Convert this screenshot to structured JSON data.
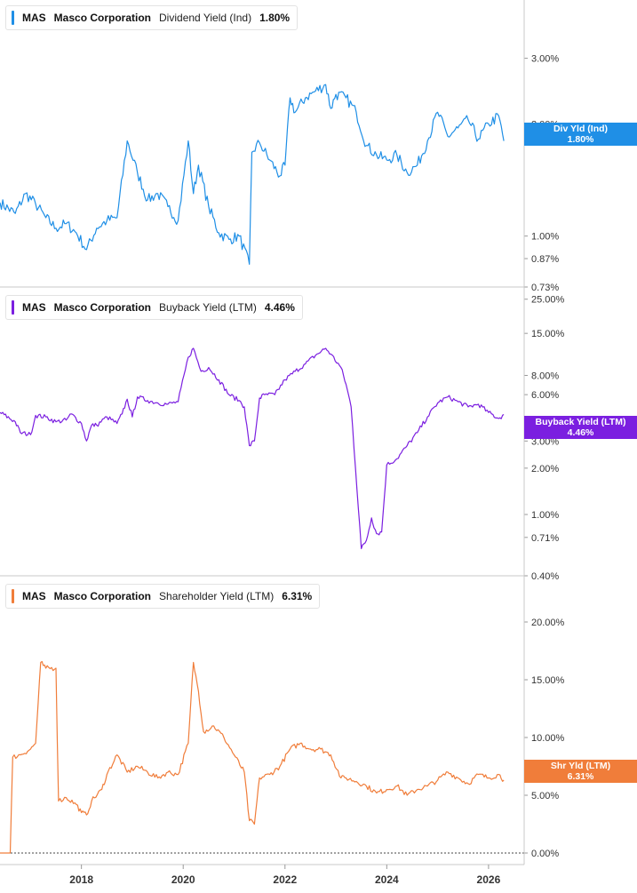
{
  "chart_data": [
    {
      "type": "line",
      "ticker": "MAS",
      "company": "Masco Corporation",
      "metric": "Dividend Yield (Ind)",
      "current_value": "1.80%",
      "badge": {
        "line1": "Div Yld (Ind)",
        "line2": "1.80%"
      },
      "color": "#1f8fe6",
      "scale": "log",
      "ylim": [
        0.73,
        4.3
      ],
      "y_ticks": [
        {
          "label": "3.00%",
          "v": 3.0
        },
        {
          "label": "2.00%",
          "v": 2.0
        },
        {
          "label": "1.00%",
          "v": 1.0
        },
        {
          "label": "0.87%",
          "v": 0.87
        },
        {
          "label": "0.73%",
          "v": 0.73
        }
      ],
      "x": [
        2016.4,
        2016.7,
        2016.9,
        2017.1,
        2017.3,
        2017.5,
        2017.7,
        2017.9,
        2018.1,
        2018.3,
        2018.5,
        2018.7,
        2018.9,
        2019.1,
        2019.3,
        2019.5,
        2019.7,
        2019.9,
        2020.1,
        2020.2,
        2020.3,
        2020.5,
        2020.7,
        2020.9,
        2021.1,
        2021.3,
        2021.35,
        2021.5,
        2021.7,
        2021.9,
        2022.0,
        2022.1,
        2022.2,
        2022.4,
        2022.6,
        2022.8,
        2022.9,
        2023.0,
        2023.2,
        2023.4,
        2023.6,
        2023.8,
        2024.0,
        2024.2,
        2024.4,
        2024.6,
        2024.8,
        2025.0,
        2025.2,
        2025.4,
        2025.6,
        2025.8,
        2026.0,
        2026.2,
        2026.3
      ],
      "values": [
        1.23,
        1.15,
        1.3,
        1.22,
        1.12,
        1.05,
        1.08,
        1.02,
        0.92,
        1.05,
        1.1,
        1.12,
        1.8,
        1.48,
        1.25,
        1.3,
        1.2,
        1.1,
        1.8,
        1.3,
        1.55,
        1.2,
        1.02,
        0.98,
        1.0,
        0.84,
        1.68,
        1.78,
        1.6,
        1.45,
        1.55,
        2.35,
        2.15,
        2.35,
        2.45,
        2.55,
        2.2,
        2.4,
        2.35,
        2.15,
        1.75,
        1.65,
        1.6,
        1.65,
        1.48,
        1.55,
        1.8,
        2.15,
        1.85,
        1.95,
        2.05,
        1.82,
        2.0,
        2.1,
        1.8
      ]
    },
    {
      "type": "line",
      "ticker": "MAS",
      "company": "Masco Corporation",
      "metric": "Buyback Yield (LTM)",
      "current_value": "4.46%",
      "badge": {
        "line1": "Buyback Yield (LTM)",
        "line2": "4.46%"
      },
      "color": "#7b1fe0",
      "scale": "log",
      "ylim": [
        0.4,
        30.0
      ],
      "y_ticks": [
        {
          "label": "25.00%",
          "v": 25
        },
        {
          "label": "15.00%",
          "v": 15
        },
        {
          "label": "8.00%",
          "v": 8
        },
        {
          "label": "6.00%",
          "v": 6
        },
        {
          "label": "3.00%",
          "v": 3
        },
        {
          "label": "2.00%",
          "v": 2
        },
        {
          "label": "1.00%",
          "v": 1
        },
        {
          "label": "0.71%",
          "v": 0.71
        },
        {
          "label": "0.40%",
          "v": 0.4
        }
      ],
      "x": [
        2016.4,
        2016.7,
        2016.8,
        2017.0,
        2017.1,
        2017.3,
        2017.5,
        2017.7,
        2017.8,
        2018.0,
        2018.1,
        2018.2,
        2018.3,
        2018.5,
        2018.7,
        2018.8,
        2018.9,
        2019.0,
        2019.1,
        2019.3,
        2019.5,
        2019.7,
        2019.9,
        2020.1,
        2020.2,
        2020.35,
        2020.5,
        2020.7,
        2020.9,
        2021.1,
        2021.2,
        2021.3,
        2021.4,
        2021.5,
        2021.6,
        2021.8,
        2022.0,
        2022.2,
        2022.4,
        2022.6,
        2022.8,
        2022.9,
        2023.1,
        2023.2,
        2023.3,
        2023.5,
        2023.6,
        2023.7,
        2023.8,
        2023.9,
        2024.0,
        2024.2,
        2024.4,
        2024.6,
        2024.8,
        2025.0,
        2025.2,
        2025.4,
        2025.6,
        2025.8,
        2026.0,
        2026.2,
        2026.3
      ],
      "values": [
        4.6,
        4.0,
        3.4,
        3.3,
        4.4,
        4.3,
        4.0,
        4.1,
        4.5,
        3.9,
        3.0,
        3.8,
        3.8,
        4.3,
        3.9,
        4.5,
        5.6,
        4.3,
        5.8,
        5.5,
        5.3,
        5.2,
        5.4,
        10.5,
        12.0,
        8.5,
        9.0,
        7.5,
        6.0,
        5.5,
        5.0,
        2.8,
        3.0,
        5.7,
        6.0,
        6.0,
        7.5,
        8.5,
        9.5,
        10.8,
        12.0,
        11.0,
        9.0,
        7.0,
        5.0,
        0.6,
        0.68,
        0.95,
        0.75,
        0.77,
        2.1,
        2.3,
        2.8,
        3.4,
        4.3,
        5.3,
        5.8,
        5.4,
        5.0,
        5.2,
        4.6,
        4.2,
        4.46
      ]
    },
    {
      "type": "line",
      "ticker": "MAS",
      "company": "Masco Corporation",
      "metric": "Shareholder Yield (LTM)",
      "current_value": "6.31%",
      "badge": {
        "line1": "Shr Yld (LTM)",
        "line2": "6.31%"
      },
      "color": "#f07d3a",
      "scale": "linear",
      "ylim": [
        -1.0,
        24.0
      ],
      "y_ticks": [
        {
          "label": "20.00%",
          "v": 20
        },
        {
          "label": "15.00%",
          "v": 15
        },
        {
          "label": "10.00%",
          "v": 10
        },
        {
          "label": "5.00%",
          "v": 5
        },
        {
          "label": "0.00%",
          "v": 0
        }
      ],
      "reference_line": 0,
      "x": [
        2016.4,
        2016.6,
        2016.65,
        2016.8,
        2017.0,
        2017.1,
        2017.2,
        2017.3,
        2017.5,
        2017.55,
        2017.7,
        2017.9,
        2018.0,
        2018.1,
        2018.2,
        2018.4,
        2018.5,
        2018.7,
        2018.9,
        2019.1,
        2019.3,
        2019.5,
        2019.7,
        2019.9,
        2020.1,
        2020.2,
        2020.3,
        2020.4,
        2020.6,
        2020.8,
        2021.0,
        2021.2,
        2021.3,
        2021.4,
        2021.5,
        2021.7,
        2021.9,
        2022.1,
        2022.3,
        2022.5,
        2022.7,
        2022.9,
        2023.1,
        2023.2,
        2023.4,
        2023.6,
        2023.8,
        2024.0,
        2024.2,
        2024.4,
        2024.6,
        2024.8,
        2025.0,
        2025.2,
        2025.4,
        2025.6,
        2025.8,
        2026.0,
        2026.2,
        2026.3
      ],
      "values": [
        0.0,
        0.0,
        8.3,
        8.5,
        9.0,
        9.5,
        16.5,
        16.0,
        16.0,
        4.5,
        4.8,
        4.2,
        3.5,
        3.3,
        4.5,
        5.5,
        6.8,
        8.5,
        7.0,
        7.5,
        7.0,
        6.5,
        7.0,
        6.8,
        9.5,
        16.5,
        14.0,
        10.5,
        11.0,
        10.0,
        8.5,
        7.0,
        2.8,
        2.5,
        6.5,
        6.8,
        7.5,
        9.0,
        9.5,
        9.0,
        9.0,
        8.5,
        6.5,
        6.5,
        6.2,
        5.8,
        5.2,
        5.5,
        5.8,
        5.0,
        5.5,
        5.8,
        6.3,
        7.0,
        6.5,
        6.0,
        6.8,
        6.5,
        6.8,
        6.31
      ]
    }
  ],
  "x_axis": {
    "ticks": [
      {
        "label": "2018",
        "v": 2018
      },
      {
        "label": "2020",
        "v": 2020
      },
      {
        "label": "2022",
        "v": 2022
      },
      {
        "label": "2024",
        "v": 2024
      },
      {
        "label": "2026",
        "v": 2026
      }
    ],
    "xlim": [
      2016.4,
      2026.7
    ]
  }
}
